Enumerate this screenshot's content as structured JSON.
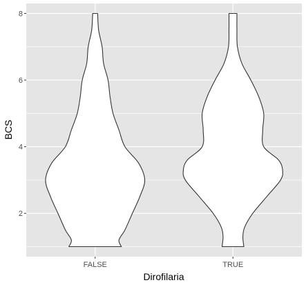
{
  "chart_data": {
    "type": "violin",
    "title": "",
    "xlabel": "Dirofilaria",
    "ylabel": "BCS",
    "categories": [
      "FALSE",
      "TRUE"
    ],
    "ylim": [
      0.7,
      8.3
    ],
    "yticks": [
      2,
      4,
      6,
      8
    ],
    "grid": true,
    "panel_background": "#e5e5e5",
    "grid_color": "#ffffff",
    "violin_fill": "#ffffff",
    "violin_stroke": "#333333",
    "series": [
      {
        "category": "FALSE",
        "range": [
          1,
          8
        ],
        "density_profile": [
          [
            1.0,
            0.53
          ],
          [
            1.2,
            0.48
          ],
          [
            1.5,
            0.6
          ],
          [
            2.0,
            0.75
          ],
          [
            2.5,
            0.9
          ],
          [
            3.0,
            1.0
          ],
          [
            3.5,
            0.88
          ],
          [
            4.0,
            0.6
          ],
          [
            4.5,
            0.48
          ],
          [
            5.0,
            0.36
          ],
          [
            5.5,
            0.3
          ],
          [
            6.0,
            0.26
          ],
          [
            6.5,
            0.17
          ],
          [
            7.0,
            0.14
          ],
          [
            7.5,
            0.07
          ],
          [
            8.0,
            0.05
          ]
        ]
      },
      {
        "category": "TRUE",
        "range": [
          1,
          8
        ],
        "density_profile": [
          [
            1.0,
            0.22
          ],
          [
            1.3,
            0.2
          ],
          [
            1.6,
            0.24
          ],
          [
            2.0,
            0.4
          ],
          [
            2.5,
            0.68
          ],
          [
            3.0,
            0.96
          ],
          [
            3.3,
            1.0
          ],
          [
            3.6,
            0.92
          ],
          [
            4.0,
            0.62
          ],
          [
            4.5,
            0.6
          ],
          [
            5.0,
            0.62
          ],
          [
            5.5,
            0.52
          ],
          [
            6.0,
            0.36
          ],
          [
            6.5,
            0.18
          ],
          [
            7.0,
            0.09
          ],
          [
            7.5,
            0.08
          ],
          [
            8.0,
            0.08
          ]
        ]
      }
    ]
  }
}
